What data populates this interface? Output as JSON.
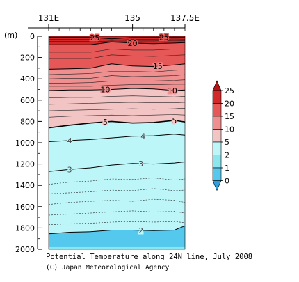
{
  "chart_data": {
    "type": "heatmap",
    "title": "Potential Temperature along 24N line, July 2008",
    "credit": "(C) Japan Meteorological Agency",
    "x_ticks": [
      "131E",
      "135",
      "137.5E"
    ],
    "x_range": [
      131,
      137.5
    ],
    "y_unit": "(m)",
    "y_ticks": [
      "0",
      "200",
      "400",
      "600",
      "800",
      "1000",
      "1200",
      "1400",
      "1600",
      "1800",
      "2000"
    ],
    "y_range": [
      0,
      2000
    ],
    "colorbar": {
      "levels": [
        0,
        1,
        2,
        5,
        10,
        15,
        20,
        25
      ],
      "labels": [
        "0",
        "1",
        "2",
        "5",
        "10",
        "15",
        "20",
        "25"
      ],
      "colors": [
        "#2ea0df",
        "#55c8ee",
        "#8be6ee",
        "#bdf6f8",
        "#f3c4c4",
        "#f08f8f",
        "#e65757",
        "#d42828",
        "#b81414"
      ]
    },
    "bands": [
      {
        "min": 20,
        "max": 30,
        "color": "#d42828"
      },
      {
        "min": 15,
        "max": 20,
        "color": "#e65757"
      },
      {
        "min": 10,
        "max": 15,
        "color": "#f08f8f"
      },
      {
        "min": 5,
        "max": 10,
        "color": "#f3c4c4"
      },
      {
        "min": 2,
        "max": 5,
        "color": "#bdf6f8"
      },
      {
        "min": 1,
        "max": 2,
        "color": "#8be6ee"
      }
    ],
    "x_grid": [
      131,
      132,
      133,
      134,
      135,
      136,
      137,
      137.5
    ],
    "isotherms": [
      {
        "value": 25,
        "label": "25",
        "depth": [
          10,
          10,
          10,
          25,
          12,
          10,
          9,
          10
        ],
        "label_at": [
          133.2,
          136.5
        ],
        "solid": true
      },
      {
        "value": 20,
        "label": "20",
        "depth": [
          80,
          80,
          80,
          55,
          65,
          70,
          65,
          60
        ],
        "label_at": [
          135
        ],
        "solid": true
      },
      {
        "value": 15,
        "label": "15",
        "depth": [
          310,
          305,
          300,
          260,
          280,
          285,
          270,
          260
        ],
        "label_at": [
          136.2
        ],
        "solid": true
      },
      {
        "value": 10,
        "label": "10",
        "depth": [
          510,
          505,
          505,
          500,
          490,
          495,
          510,
          505
        ],
        "label_at": [
          133.7,
          136.9
        ],
        "solid": true
      },
      {
        "value": 5,
        "label": "5",
        "depth": [
          860,
          835,
          815,
          800,
          815,
          810,
          790,
          805
        ],
        "label_at": [
          133.7,
          137
        ],
        "solid": true
      },
      {
        "value": 4,
        "label": "4",
        "depth": [
          990,
          980,
          970,
          955,
          940,
          935,
          920,
          930
        ],
        "label_at": [
          132.0,
          135.5
        ],
        "solid": true
      },
      {
        "value": 3,
        "label": "3",
        "depth": [
          1270,
          1250,
          1235,
          1210,
          1195,
          1200,
          1190,
          1180
        ],
        "label_at": [
          132.0,
          135.4
        ],
        "solid": true
      },
      {
        "value": 2,
        "label": "2",
        "depth": [
          1855,
          1840,
          1835,
          1820,
          1820,
          1825,
          1820,
          1780
        ],
        "label_at": [
          135.4
        ],
        "solid": true
      }
    ],
    "minor_isotherms": [
      {
        "depth": [
          30,
          30,
          30,
          40,
          30,
          28,
          26,
          28
        ]
      },
      {
        "depth": [
          50,
          50,
          50,
          47,
          45,
          45,
          40,
          42
        ]
      },
      {
        "depth": [
          150,
          150,
          150,
          120,
          130,
          130,
          120,
          120
        ]
      },
      {
        "depth": [
          210,
          210,
          210,
          175,
          185,
          190,
          180,
          175
        ]
      },
      {
        "depth": [
          360,
          355,
          350,
          330,
          330,
          335,
          320,
          315
        ]
      },
      {
        "depth": [
          400,
          395,
          395,
          370,
          380,
          375,
          370,
          360
        ]
      },
      {
        "depth": [
          440,
          440,
          435,
          420,
          420,
          420,
          415,
          410
        ]
      },
      {
        "depth": [
          470,
          470,
          470,
          460,
          455,
          455,
          450,
          450
        ]
      },
      {
        "depth": [
          580,
          575,
          575,
          565,
          560,
          565,
          570,
          565
        ]
      },
      {
        "depth": [
          640,
          635,
          630,
          625,
          620,
          625,
          625,
          620
        ]
      },
      {
        "depth": [
          700,
          695,
          690,
          685,
          680,
          685,
          680,
          675
        ]
      },
      {
        "depth": [
          760,
          750,
          745,
          740,
          745,
          740,
          735,
          740
        ]
      },
      {
        "depth": [
          1390,
          1370,
          1360,
          1340,
          1345,
          1330,
          1350,
          1340
        ],
        "dashed": true
      },
      {
        "depth": [
          1480,
          1470,
          1460,
          1445,
          1450,
          1430,
          1450,
          1445
        ],
        "dashed": true
      },
      {
        "depth": [
          1580,
          1560,
          1550,
          1540,
          1550,
          1530,
          1540,
          1560
        ],
        "dashed": true
      },
      {
        "depth": [
          1680,
          1670,
          1660,
          1650,
          1640,
          1650,
          1645,
          1660
        ],
        "dashed": true
      },
      {
        "depth": [
          1770,
          1760,
          1755,
          1745,
          1740,
          1745,
          1740,
          1750
        ],
        "dashed": true
      }
    ]
  }
}
